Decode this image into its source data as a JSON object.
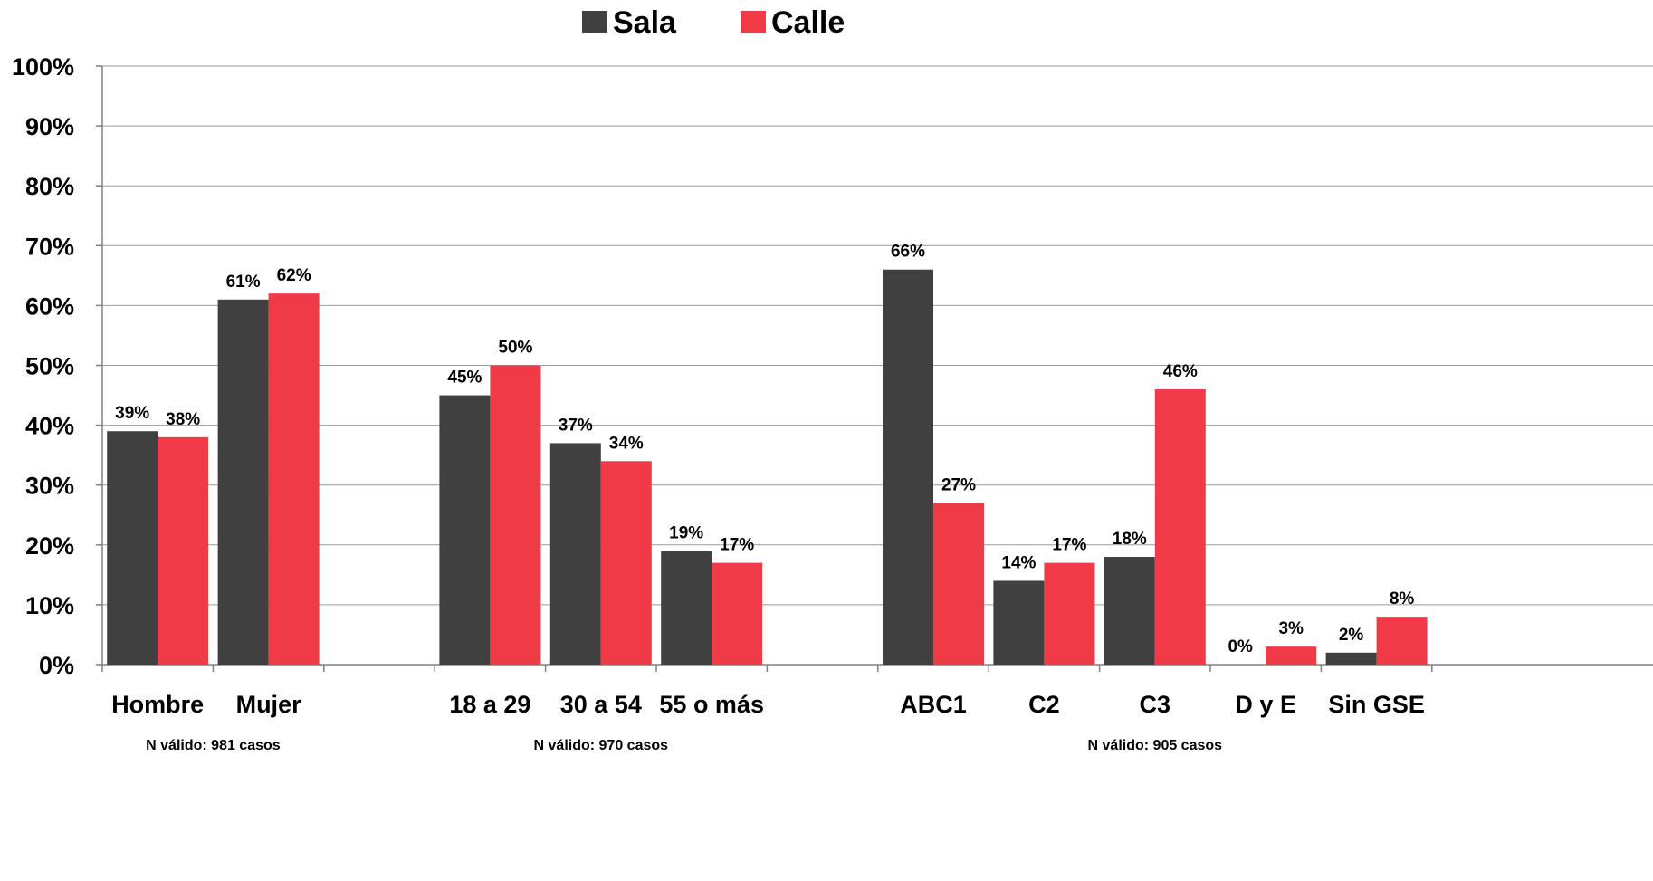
{
  "chart_data": {
    "type": "bar",
    "title": "",
    "xlabel": "",
    "ylabel": "",
    "ylim": [
      0,
      100
    ],
    "yticks": [
      0,
      10,
      20,
      30,
      40,
      50,
      60,
      70,
      80,
      90,
      100
    ],
    "ytick_suffix": "%",
    "grid": true,
    "legend_position": "top-center",
    "colors": {
      "Sala": "#404040",
      "Calle": "#f03a48",
      "grid": "#9a9a9a"
    },
    "categories": [
      "Hombre",
      "Mujer",
      "",
      "18 a 29",
      "30 a 54",
      "55 o más",
      "",
      "ABC1",
      "C2",
      "C3",
      "D y E",
      "Sin GSE"
    ],
    "series": [
      {
        "name": "Sala",
        "values": [
          39,
          61,
          null,
          45,
          37,
          19,
          null,
          66,
          14,
          18,
          0,
          2
        ]
      },
      {
        "name": "Calle",
        "values": [
          38,
          62,
          null,
          50,
          34,
          17,
          null,
          27,
          17,
          46,
          3,
          8
        ]
      }
    ],
    "notes": [
      {
        "text": "N válido: 981 casos",
        "under": [
          "Hombre",
          "Mujer"
        ]
      },
      {
        "text": "N válido: 970 casos",
        "under": [
          "18 a 29",
          "30 a 54",
          "55 o más"
        ]
      },
      {
        "text": "N válido: 905 casos",
        "under": [
          "ABC1",
          "C2",
          "C3",
          "D y E",
          "Sin GSE"
        ]
      }
    ]
  }
}
